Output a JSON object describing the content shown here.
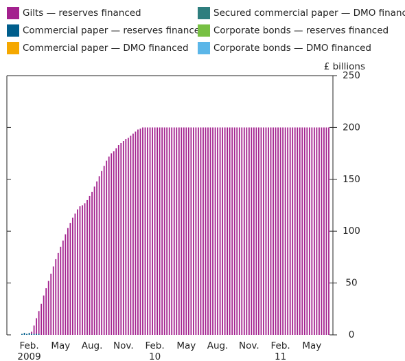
{
  "chart_data": {
    "type": "stacked_bar",
    "y_label": "£ billions",
    "legend_columns": 2,
    "categories": [
      null,
      null,
      null,
      "Feb.",
      null,
      null,
      null,
      null,
      null,
      null,
      null,
      null,
      null,
      null,
      null,
      null,
      "May",
      null,
      null,
      null,
      null,
      null,
      null,
      null,
      null,
      null,
      null,
      null,
      null,
      "Aug.",
      null,
      null,
      null,
      null,
      null,
      null,
      null,
      null,
      null,
      null,
      null,
      null,
      "Nov.",
      null,
      null,
      null,
      null,
      null,
      null,
      null,
      null,
      null,
      null,
      null,
      null,
      "Feb.",
      null,
      null,
      null,
      null,
      null,
      null,
      null,
      null,
      null,
      null,
      null,
      null,
      "May",
      null,
      null,
      null,
      null,
      null,
      null,
      null,
      null,
      null,
      null,
      null,
      null,
      "Aug.",
      null,
      null,
      null,
      null,
      null,
      null,
      null,
      null,
      null,
      null,
      null,
      null,
      "Nov.",
      null,
      null,
      null,
      null,
      null,
      null,
      null,
      null,
      null,
      null,
      null,
      null,
      "Feb.",
      null,
      null,
      null,
      null,
      null,
      null,
      null,
      null,
      null,
      null,
      null,
      null,
      "May",
      null,
      null,
      null,
      null,
      null,
      null,
      null
    ],
    "category_years": [
      null,
      null,
      null,
      "2009",
      null,
      null,
      null,
      null,
      null,
      null,
      null,
      null,
      null,
      null,
      null,
      null,
      null,
      null,
      null,
      null,
      null,
      null,
      null,
      null,
      null,
      null,
      null,
      null,
      null,
      null,
      null,
      null,
      null,
      null,
      null,
      null,
      null,
      null,
      null,
      null,
      null,
      null,
      null,
      null,
      null,
      null,
      null,
      null,
      null,
      null,
      null,
      null,
      null,
      null,
      null,
      "10",
      null,
      null,
      null,
      null,
      null,
      null,
      null,
      null,
      null,
      null,
      null,
      null,
      null,
      null,
      null,
      null,
      null,
      null,
      null,
      null,
      null,
      null,
      null,
      null,
      null,
      null,
      null,
      null,
      null,
      null,
      null,
      null,
      null,
      null,
      null,
      null,
      null,
      null,
      null,
      null,
      null,
      null,
      null,
      null,
      null,
      null,
      null,
      null,
      null,
      null,
      null,
      "11",
      null,
      null,
      null,
      null,
      null,
      null,
      null,
      null,
      null,
      null,
      null,
      null,
      null,
      null,
      null,
      null,
      null,
      null,
      null,
      null
    ],
    "series": [
      {
        "name": "Commercial paper — reserves financed",
        "color": "#005e8c",
        "values": [
          1,
          2,
          1,
          2,
          1,
          1,
          1,
          1,
          0,
          0,
          0,
          0,
          0,
          0,
          0,
          0,
          0,
          0,
          0,
          0,
          0,
          0,
          0,
          0,
          0,
          0,
          0,
          0,
          0,
          0,
          0,
          0,
          0,
          0,
          0,
          0,
          0,
          0,
          0,
          0,
          0,
          0,
          0,
          0,
          0,
          0,
          0,
          0,
          0,
          0,
          0,
          0,
          0,
          0,
          0,
          0,
          0,
          0,
          0,
          0,
          0,
          0,
          0,
          0,
          0,
          0,
          0,
          0,
          0,
          0,
          0,
          0,
          0,
          0,
          0,
          0,
          0,
          0,
          0,
          0,
          0,
          0,
          0,
          0,
          0,
          0,
          0,
          0,
          0,
          0,
          0,
          0,
          0,
          0,
          0,
          0,
          0,
          0,
          0,
          0,
          0,
          0,
          0,
          0,
          0,
          0,
          0,
          0,
          0,
          0,
          0,
          0,
          0,
          0,
          0,
          0,
          0,
          0,
          0,
          0,
          0,
          0,
          0,
          0,
          0,
          0,
          0,
          0
        ]
      },
      {
        "name": "Commercial paper — DMO financed",
        "color": "#f5a800",
        "values": [
          0,
          0,
          0,
          0,
          0,
          0,
          0,
          0,
          0,
          0,
          0,
          0,
          0,
          0,
          0,
          0,
          0,
          0,
          0,
          0,
          0,
          0,
          0,
          0,
          0,
          0,
          0,
          0,
          0,
          0,
          0,
          0,
          0,
          0,
          0,
          0,
          0,
          0,
          0,
          0,
          0,
          0,
          0,
          0,
          0,
          0,
          0,
          0,
          0,
          0,
          0,
          0,
          0,
          0,
          0,
          0,
          0,
          0,
          0,
          0,
          0,
          0,
          0,
          0,
          0,
          0,
          0,
          0,
          0,
          0,
          0,
          0,
          0,
          0,
          0,
          0,
          0,
          0,
          0,
          0,
          0,
          0,
          0,
          0,
          0,
          0,
          0,
          0,
          0,
          0,
          0,
          0,
          0,
          0,
          0,
          0,
          0,
          0,
          0,
          0,
          0,
          0,
          0,
          0,
          0,
          0,
          0,
          0,
          0,
          0,
          0,
          0,
          0,
          0,
          0,
          0,
          0,
          0,
          0,
          0,
          0,
          0,
          0,
          0,
          0,
          0,
          0,
          0
        ]
      },
      {
        "name": "Secured commercial paper — DMO financed",
        "color": "#2e7e7e",
        "values": [
          0,
          0,
          0,
          0,
          0,
          0,
          0,
          0,
          0,
          0,
          0,
          0,
          0,
          0,
          0,
          0,
          0,
          0,
          0,
          0,
          0,
          0,
          0,
          0,
          0,
          0,
          0,
          0,
          0,
          0,
          0,
          0,
          0,
          0,
          0,
          0,
          0,
          0,
          0,
          0,
          0,
          0,
          0,
          0,
          0,
          0,
          0,
          0,
          0,
          0,
          0,
          0,
          0,
          0,
          0,
          0,
          0,
          0,
          0,
          0,
          0,
          0,
          0,
          0,
          0,
          0,
          0,
          0,
          0,
          0,
          0,
          0,
          0,
          0,
          0,
          0,
          0,
          0,
          0,
          0,
          0,
          0,
          0,
          0,
          0,
          0,
          0,
          0,
          0,
          0,
          0,
          0,
          0,
          0,
          0,
          0,
          0,
          0,
          0,
          0,
          0,
          0,
          0,
          0,
          0,
          0,
          0,
          0,
          0,
          0,
          0,
          0,
          0,
          0,
          0,
          0,
          0,
          0,
          0,
          0,
          0,
          0,
          0,
          0,
          0,
          0,
          0,
          0
        ]
      },
      {
        "name": "Corporate bonds — reserves financed",
        "color": "#77c043",
        "values": [
          0,
          0,
          0,
          0,
          0,
          0,
          0,
          0,
          0,
          0,
          0,
          0,
          0,
          0,
          0,
          0,
          0,
          0,
          0,
          0,
          0,
          0,
          0,
          0,
          0,
          0,
          0,
          0,
          0,
          0,
          0,
          0,
          0,
          0,
          0,
          0,
          0,
          0,
          0,
          0,
          0,
          0,
          0,
          0,
          0,
          0,
          0,
          0,
          0,
          0,
          0,
          0,
          0,
          0,
          0,
          0,
          0,
          0,
          0,
          0,
          0,
          0,
          0,
          0,
          0,
          0,
          0,
          0,
          0,
          0,
          0,
          0,
          0,
          0,
          0,
          0,
          0,
          0,
          0,
          0,
          0,
          0,
          0,
          0,
          0,
          0,
          0,
          0,
          0,
          0,
          0,
          0,
          0,
          0,
          0,
          0,
          0,
          0,
          0,
          0,
          0,
          0,
          0,
          0,
          0,
          0,
          0,
          0,
          0,
          0,
          0,
          0,
          0,
          0,
          0,
          0,
          0,
          0,
          0,
          0,
          0,
          0,
          0,
          0,
          0,
          0,
          0,
          0
        ]
      },
      {
        "name": "Corporate bonds — DMO financed",
        "color": "#5bb6e8",
        "values": [
          0,
          0,
          0,
          0,
          0,
          0,
          0,
          0,
          0,
          0,
          0,
          0,
          0,
          0,
          0,
          0,
          0,
          0,
          0,
          0,
          0,
          0,
          0,
          0,
          0,
          0,
          0,
          0,
          0,
          0,
          0,
          0,
          0,
          0,
          0,
          0,
          0,
          0,
          0,
          0,
          0,
          0,
          0,
          0,
          0,
          0,
          0,
          0,
          0,
          0,
          0,
          0,
          0,
          0,
          0,
          0,
          0,
          0,
          0,
          0,
          0,
          0,
          0,
          0,
          0,
          0,
          0,
          0,
          0,
          0,
          0,
          0,
          0,
          0,
          0,
          0,
          0,
          0,
          0,
          0,
          0,
          0,
          0,
          0,
          0,
          0,
          0,
          0,
          0,
          0,
          0,
          0,
          0,
          0,
          0,
          0,
          0,
          0,
          0,
          0,
          0,
          0,
          0,
          0,
          0,
          0,
          0,
          0,
          0,
          0,
          0,
          0,
          0,
          0,
          0,
          0,
          0,
          0,
          0,
          0,
          0,
          0,
          0,
          0,
          0,
          0,
          0,
          0
        ]
      },
      {
        "name": "Gilts — reserves financed",
        "color": "#a3218e",
        "values": [
          0,
          0,
          0,
          0,
          2,
          8,
          15,
          22,
          30,
          38,
          45,
          52,
          59,
          66,
          73,
          79,
          85,
          91,
          97,
          103,
          108,
          113,
          117,
          121,
          124,
          125,
          127,
          130,
          134,
          138,
          143,
          148,
          153,
          158,
          163,
          168,
          172,
          175,
          177,
          180,
          183,
          185,
          187,
          189,
          190,
          192,
          194,
          196,
          198,
          199,
          200,
          200,
          200,
          200,
          200,
          200,
          200,
          200,
          200,
          200,
          200,
          200,
          200,
          200,
          200,
          200,
          200,
          200,
          200,
          200,
          200,
          200,
          200,
          200,
          200,
          200,
          200,
          200,
          200,
          200,
          200,
          200,
          200,
          200,
          200,
          200,
          200,
          200,
          200,
          200,
          200,
          200,
          200,
          200,
          200,
          200,
          200,
          200,
          200,
          200,
          200,
          200,
          200,
          200,
          200,
          200,
          200,
          200,
          200,
          200,
          200,
          200,
          200,
          200,
          200,
          200,
          200,
          200,
          200,
          200,
          200,
          200,
          200,
          200,
          200,
          200,
          200,
          200
        ]
      }
    ],
    "legend_order": [
      5,
      2,
      0,
      3,
      1,
      4
    ],
    "ylim": [
      0,
      250
    ],
    "yticks": [
      0,
      50,
      100,
      150,
      200,
      250
    ],
    "grid": false
  }
}
